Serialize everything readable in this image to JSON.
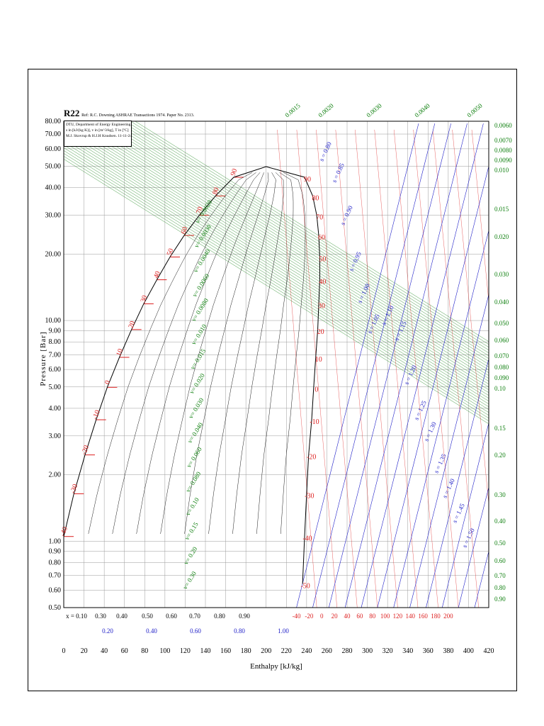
{
  "page": {
    "title_main": "R22",
    "title_ref": "Ref: R.C. Downing ASHRAE Transactions 1974. Paper No. 2313.",
    "info_lines": [
      "DTU, Department of Energy Engineering",
      "s in [kJ/(kg K)], v in [m^3/kg], T in [ºC]",
      "M.J. Skovrup & H.J.H Knudsen. 11-11-24"
    ]
  },
  "colors": {
    "frame": "#000000",
    "grid": "#9a9a9a",
    "saturation": "#000000",
    "quality": "#1a1a1a",
    "isotherm": "#dd2020",
    "isochore": "#108010",
    "isentrope": "#2020c8"
  },
  "chart_data": {
    "type": "line",
    "title": "R22",
    "xlabel": "Enthalpy [kJ/kg]",
    "ylabel": "Pressure [Bar]",
    "xlim": [
      0,
      420
    ],
    "ylim": [
      0.5,
      80
    ],
    "y_scale": "log",
    "x_ticks": [
      "0",
      "20",
      "40",
      "60",
      "80",
      "100",
      "120",
      "140",
      "160",
      "180",
      "200",
      "220",
      "240",
      "260",
      "280",
      "300",
      "320",
      "340",
      "360",
      "380",
      "400",
      "420"
    ],
    "y_ticks": [
      "0.50",
      "0.60",
      "0.70",
      "0.80",
      "0.90",
      "1.00",
      "2.00",
      "3.00",
      "4.00",
      "5.00",
      "6.00",
      "7.00",
      "8.00",
      "9.00",
      "10.00",
      "20.00",
      "30.00",
      "40.00",
      "50.00",
      "60.00",
      "70.00",
      "80.00"
    ],
    "quality_row1": [
      "x = 0.10",
      "0.30",
      "0.40",
      "0.50",
      "0.60",
      "0.70",
      "0.80",
      "0.90"
    ],
    "quality_row2": [
      "0.20",
      "0.40",
      "0.60",
      "0.80",
      "1.00"
    ],
    "temp_bottom_labels": [
      "-40",
      "-20",
      "0",
      "20",
      "40",
      "60",
      "80",
      "100",
      "120",
      "140",
      "160",
      "180",
      "200"
    ],
    "liquid_temp_labels": [
      "-40",
      "-30",
      "-20",
      "-10",
      "0",
      "10",
      "20",
      "30",
      "40",
      "50",
      "60",
      "70",
      "80",
      "90"
    ],
    "vapor_temp_labels": [
      "90",
      "80",
      "70",
      "60",
      "50",
      "40",
      "30",
      "20",
      "10",
      "0",
      "-10",
      "-20",
      "-30",
      "-40",
      "-50"
    ],
    "isochore_inside_labels": [
      "v= 0.0020",
      "v= 0.0030",
      "v= 0.0040",
      "v= 0.0060",
      "v= 0.0080",
      "v= 0.010",
      "v= 0.015",
      "v= 0.020",
      "v= 0.030",
      "v= 0.040",
      "v= 0.060",
      "v= 0.080",
      "v= 0.10",
      "v= 0.15",
      "v= 0.20",
      "v= 0.30"
    ],
    "isochore_top_labels": [
      "0.0015",
      "0.0020",
      "0.0030",
      "0.0040",
      "0.0050"
    ],
    "isochore_right_labels": [
      "0.0060",
      "0.0070",
      "0.0080",
      "0.0090",
      "0.010",
      "0.015",
      "0.020",
      "0.030",
      "0.040",
      "0.050",
      "0.060",
      "0.070",
      "0.080",
      "0.090",
      "0.10",
      "0.15",
      "0.20",
      "0.30",
      "0.40",
      "0.50",
      "0.60",
      "0.70",
      "0.80",
      "0.90"
    ],
    "isentrope_labels": [
      "s = 0.80",
      "s = 0.85",
      "s = 0.90",
      "s = 0.95",
      "s = 1.00",
      "s = 1.05",
      "s = 1.10",
      "s = 1.15",
      "s = 1.20",
      "s = 1.25",
      "s = 1.30",
      "s = 1.35",
      "s = 1.40",
      "s = 1.45",
      "s = 1.50"
    ],
    "saturated_liquid": [
      [
        0.0,
        1.05
      ],
      [
        10.0,
        1.64
      ],
      [
        21.0,
        2.46
      ],
      [
        32.0,
        3.55
      ],
      [
        43.0,
        4.98
      ],
      [
        55.0,
        6.81
      ],
      [
        67.0,
        9.1
      ],
      [
        79.0,
        11.9
      ],
      [
        92.0,
        15.3
      ],
      [
        105.0,
        19.4
      ],
      [
        119.0,
        24.3
      ],
      [
        134.0,
        30.0
      ],
      [
        150.0,
        36.7
      ],
      [
        168.0,
        44.6
      ],
      [
        200.0,
        49.8
      ]
    ],
    "saturated_vapor": [
      [
        200.0,
        49.8
      ],
      [
        238.0,
        44.6
      ],
      [
        246.0,
        36.7
      ],
      [
        250.0,
        30.0
      ],
      [
        252.0,
        24.3
      ],
      [
        253.0,
        19.4
      ],
      [
        253.0,
        15.3
      ],
      [
        252.0,
        11.9
      ],
      [
        251.0,
        9.1
      ],
      [
        249.0,
        6.81
      ],
      [
        247.0,
        4.98
      ],
      [
        245.0,
        3.55
      ],
      [
        242.0,
        2.46
      ],
      [
        240.0,
        1.64
      ],
      [
        238.0,
        1.05
      ],
      [
        236.0,
        0.64
      ]
    ]
  }
}
